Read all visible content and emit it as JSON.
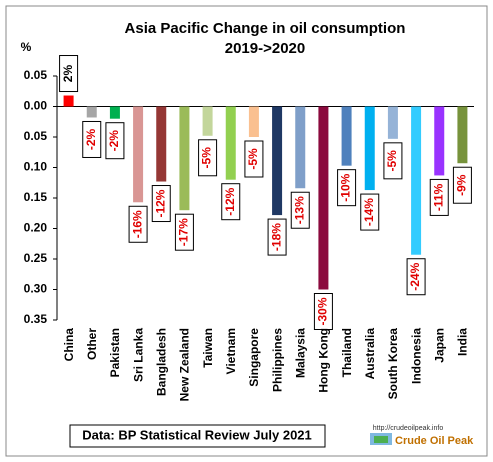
{
  "chart_data": {
    "type": "bar",
    "title": "Asia Pacific Change in oil consumption",
    "subtitle": "2019->2020",
    "y_unit": "%",
    "categories": [
      "China",
      "Other",
      "Pakistan",
      "Sri Lanka",
      "Bangladesh",
      "New Zealand",
      "Taiwan",
      "Vietnam",
      "Singapore",
      "Philippines",
      "Malaysia",
      "Hong Kong",
      "Thailand",
      "Australia",
      "South Korea",
      "Indonesia",
      "Japan",
      "India"
    ],
    "values": [
      0.018,
      -0.018,
      -0.02,
      -0.157,
      -0.123,
      -0.17,
      -0.048,
      -0.12,
      -0.05,
      -0.178,
      -0.134,
      -0.3,
      -0.097,
      -0.137,
      -0.053,
      -0.243,
      -0.113,
      -0.093
    ],
    "value_labels": [
      "2%",
      "-2%",
      "-2%",
      "-16%",
      "-12%",
      "-17%",
      "-5%",
      "-12%",
      "-5%",
      "-18%",
      "-13%",
      "-30%",
      "-10%",
      "-14%",
      "-5%",
      "-24%",
      "-11%",
      "-9%"
    ],
    "colors": [
      "#ff0000",
      "#a6a6a6",
      "#00b050",
      "#d99694",
      "#953735",
      "#9bbb59",
      "#c3d69b",
      "#92d050",
      "#fac090",
      "#1f3864",
      "#7f9fc9",
      "#8b0a3e",
      "#4f81bd",
      "#00b0f0",
      "#95b3d7",
      "#33ccff",
      "#9933ff",
      "#77933c"
    ],
    "ylim": [
      -0.35,
      0.05
    ],
    "yticks": [
      0.05,
      {
        "value": 0,
        "label": "0.00"
      },
      {
        "value": -0.05,
        "label": "0.05"
      },
      {
        "value": -0.1,
        "label": "0.10"
      },
      {
        "value": -0.15,
        "label": "0.15"
      },
      {
        "value": -0.2,
        "label": "0.20"
      },
      {
        "value": -0.25,
        "label": "0.25"
      },
      {
        "value": -0.3,
        "label": "0.30"
      },
      {
        "value": -0.35,
        "label": "0.35"
      }
    ],
    "grid": false,
    "source": "Data: BP Statistical Review July 2021",
    "logo_url": "http://crudeoilpeak.info",
    "logo_text": "Crude Oil Peak"
  }
}
